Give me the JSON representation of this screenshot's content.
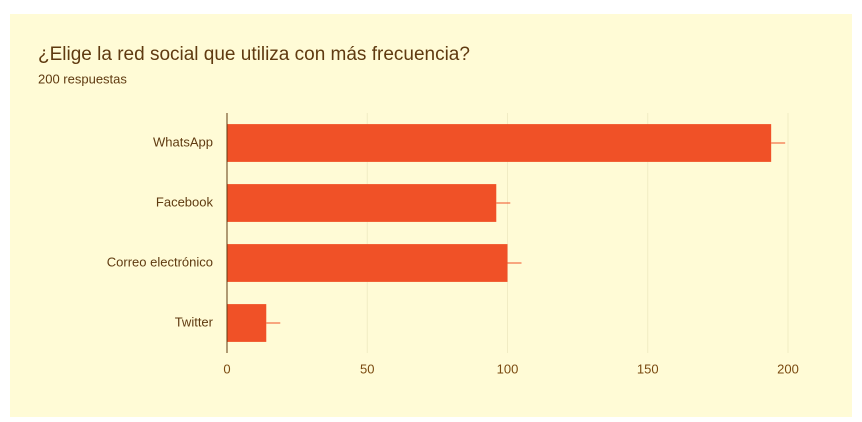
{
  "chart_data": {
    "type": "bar",
    "orientation": "horizontal",
    "title": "¿Elige la red social que utiliza con más frecuencia?",
    "subtitle": "200 respuestas",
    "categories": [
      "WhatsApp",
      "Facebook",
      "Correo electrónico",
      "Twitter"
    ],
    "values": [
      194,
      96,
      100,
      14
    ],
    "color": "#f05127",
    "xlim": [
      0,
      200
    ],
    "xticks": [
      0,
      50,
      100,
      150,
      200
    ],
    "grid": true
  }
}
